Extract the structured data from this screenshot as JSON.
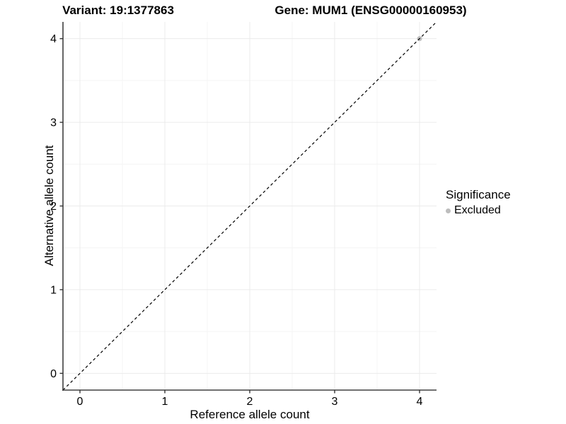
{
  "titles": {
    "left": "Variant: 19:1377863",
    "right": "Gene: MUM1 (ENSG00000160953)"
  },
  "chart_data": {
    "type": "scatter",
    "xlabel": "Reference allele count",
    "ylabel": "Alternative allele count",
    "xlim": [
      -0.2,
      4.2
    ],
    "ylim": [
      -0.2,
      4.2
    ],
    "x_ticks": [
      0,
      1,
      2,
      3,
      4
    ],
    "y_ticks": [
      0,
      1,
      2,
      3,
      4
    ],
    "x_minor_ticks": [
      0.5,
      1.5,
      2.5,
      3.5
    ],
    "y_minor_ticks": [
      0.5,
      1.5,
      2.5,
      3.5
    ],
    "grid": "major+minor",
    "reference_line": {
      "kind": "identity",
      "from": -0.2,
      "to": 4.2,
      "style": "dashed",
      "color": "#000000"
    },
    "series": [
      {
        "name": "Excluded",
        "color": "#bdbdbd",
        "points": [
          {
            "x": 4,
            "y": 4
          }
        ]
      }
    ],
    "legend": {
      "title": "Significance",
      "position": "right",
      "items": [
        {
          "label": "Excluded",
          "color": "#bdbdbd"
        }
      ]
    }
  },
  "colors": {
    "background": "#ffffff",
    "axis_line": "#404040",
    "tick_mark": "#333333",
    "tick_label": "#000000",
    "grid_major": "#ebebeb",
    "grid_minor": "#f4f4f4",
    "point": "#bdbdbd",
    "dashed_line": "#000000"
  }
}
